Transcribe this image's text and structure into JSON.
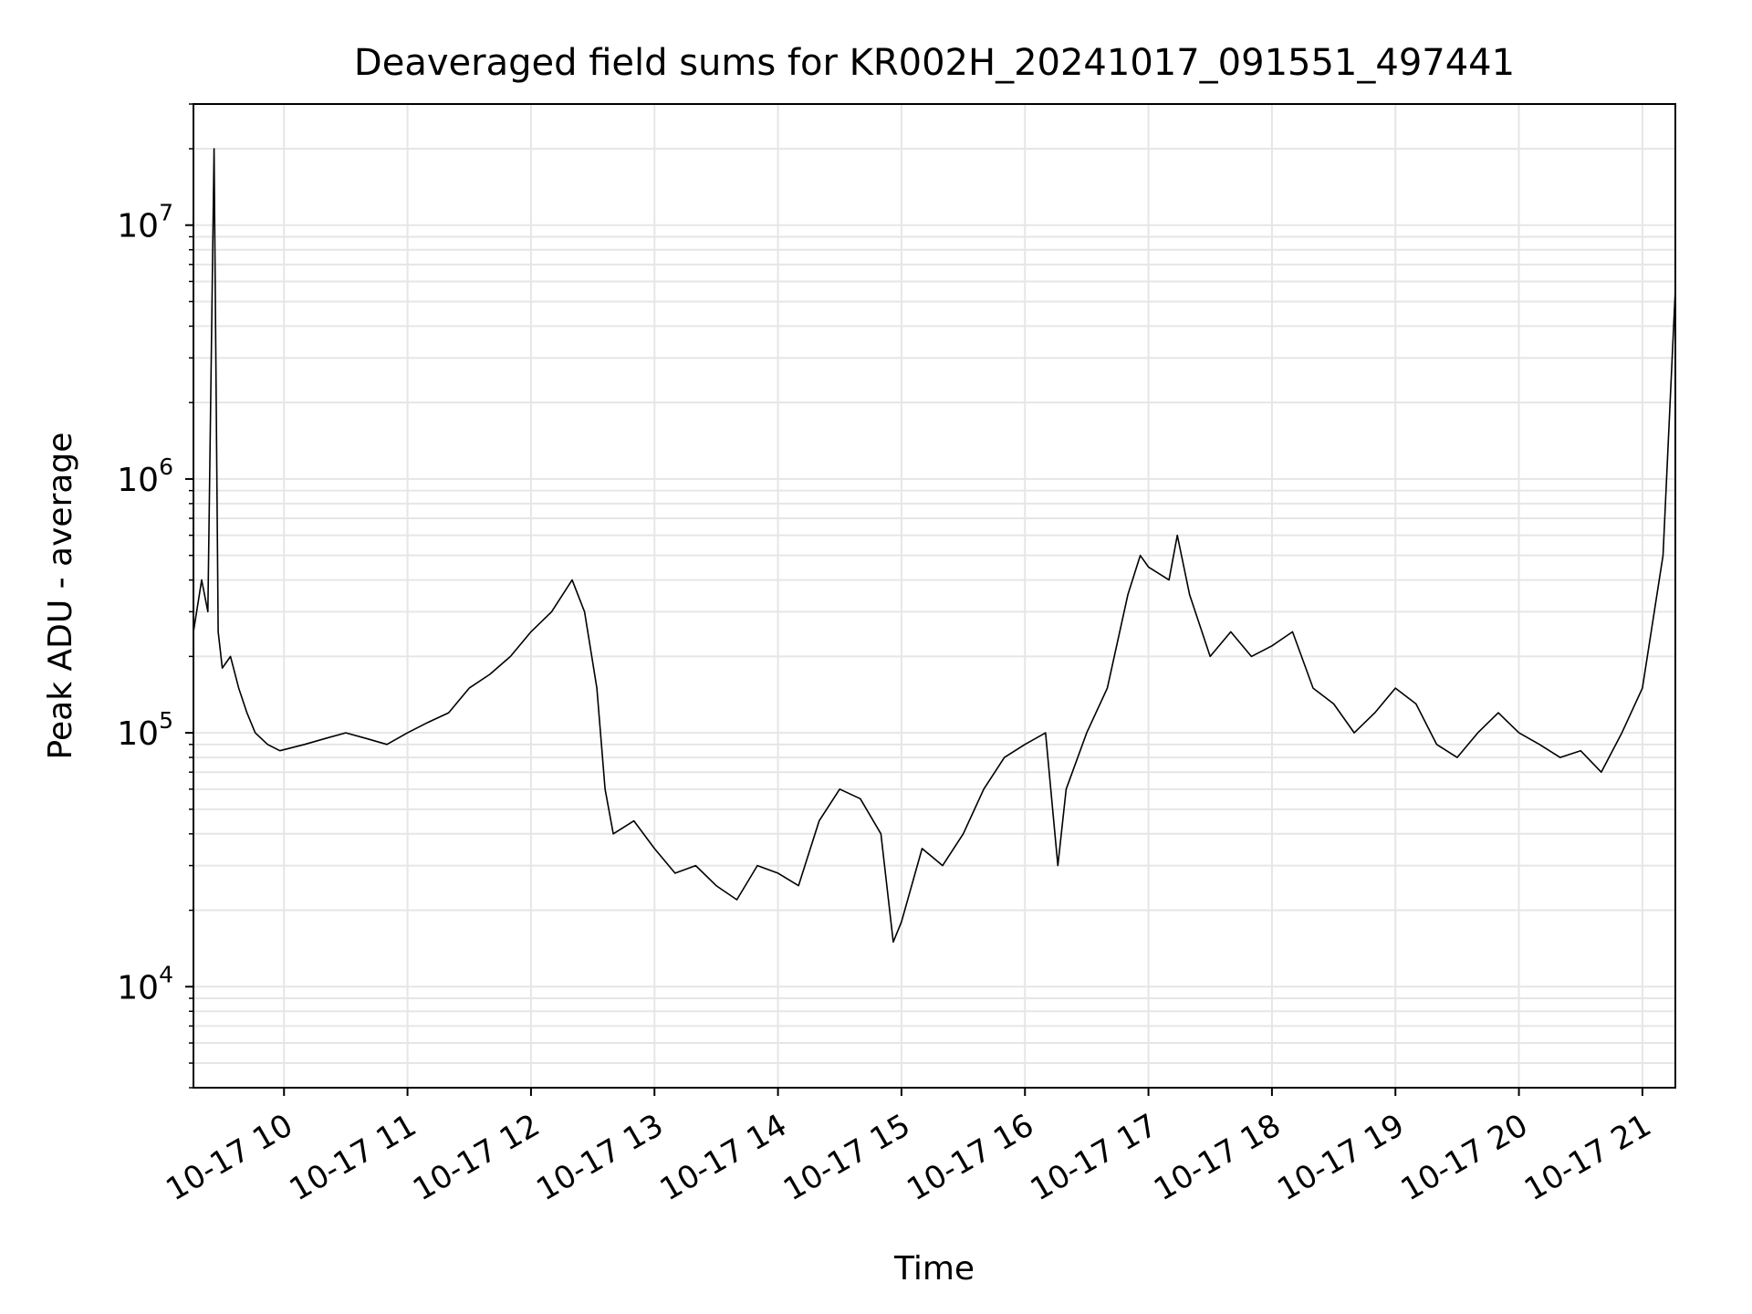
{
  "chart_data": {
    "type": "line",
    "title": "Deaveraged field sums for KR002H_20241017_091551_497441",
    "xlabel": "Time",
    "ylabel": "Peak ADU - average",
    "yscale": "log",
    "ylim": [
      4000,
      30000000
    ],
    "xlim": [
      "2024-10-17 09:16",
      "2024-10-17 21:16"
    ],
    "grid": true,
    "line_color": "#000000",
    "x_ticks": [
      {
        "time": "2024-10-17 10:00",
        "label": "10-17 10"
      },
      {
        "time": "2024-10-17 11:00",
        "label": "10-17 11"
      },
      {
        "time": "2024-10-17 12:00",
        "label": "10-17 12"
      },
      {
        "time": "2024-10-17 13:00",
        "label": "10-17 13"
      },
      {
        "time": "2024-10-17 14:00",
        "label": "10-17 14"
      },
      {
        "time": "2024-10-17 15:00",
        "label": "10-17 15"
      },
      {
        "time": "2024-10-17 16:00",
        "label": "10-17 16"
      },
      {
        "time": "2024-10-17 17:00",
        "label": "10-17 17"
      },
      {
        "time": "2024-10-17 18:00",
        "label": "10-17 18"
      },
      {
        "time": "2024-10-17 19:00",
        "label": "10-17 19"
      },
      {
        "time": "2024-10-17 20:00",
        "label": "10-17 20"
      },
      {
        "time": "2024-10-17 21:00",
        "label": "10-17 21"
      }
    ],
    "y_ticks": [
      {
        "value": 10000,
        "base": "10",
        "exp": "4"
      },
      {
        "value": 100000,
        "base": "10",
        "exp": "5"
      },
      {
        "value": 1000000,
        "base": "10",
        "exp": "6"
      },
      {
        "value": 10000000,
        "base": "10",
        "exp": "7"
      }
    ],
    "series": [
      {
        "x": [
          "2024-10-17 09:16",
          "2024-10-17 09:20",
          "2024-10-17 09:23",
          "2024-10-17 09:26",
          "2024-10-17 09:28",
          "2024-10-17 09:30",
          "2024-10-17 09:34",
          "2024-10-17 09:38",
          "2024-10-17 09:42",
          "2024-10-17 09:46",
          "2024-10-17 09:52",
          "2024-10-17 09:58",
          "2024-10-17 10:10",
          "2024-10-17 10:20",
          "2024-10-17 10:30",
          "2024-10-17 10:40",
          "2024-10-17 10:50",
          "2024-10-17 11:00",
          "2024-10-17 11:10",
          "2024-10-17 11:20",
          "2024-10-17 11:30",
          "2024-10-17 11:40",
          "2024-10-17 11:50",
          "2024-10-17 12:00",
          "2024-10-17 12:10",
          "2024-10-17 12:20",
          "2024-10-17 12:26",
          "2024-10-17 12:32",
          "2024-10-17 12:36",
          "2024-10-17 12:40",
          "2024-10-17 12:50",
          "2024-10-17 13:00",
          "2024-10-17 13:10",
          "2024-10-17 13:20",
          "2024-10-17 13:30",
          "2024-10-17 13:40",
          "2024-10-17 13:50",
          "2024-10-17 14:00",
          "2024-10-17 14:10",
          "2024-10-17 14:20",
          "2024-10-17 14:30",
          "2024-10-17 14:40",
          "2024-10-17 14:50",
          "2024-10-17 14:56",
          "2024-10-17 15:00",
          "2024-10-17 15:10",
          "2024-10-17 15:20",
          "2024-10-17 15:30",
          "2024-10-17 15:40",
          "2024-10-17 15:50",
          "2024-10-17 16:00",
          "2024-10-17 16:10",
          "2024-10-17 16:16",
          "2024-10-17 16:20",
          "2024-10-17 16:30",
          "2024-10-17 16:40",
          "2024-10-17 16:50",
          "2024-10-17 16:56",
          "2024-10-17 17:00",
          "2024-10-17 17:10",
          "2024-10-17 17:14",
          "2024-10-17 17:20",
          "2024-10-17 17:30",
          "2024-10-17 17:40",
          "2024-10-17 17:50",
          "2024-10-17 18:00",
          "2024-10-17 18:10",
          "2024-10-17 18:20",
          "2024-10-17 18:30",
          "2024-10-17 18:40",
          "2024-10-17 18:50",
          "2024-10-17 19:00",
          "2024-10-17 19:10",
          "2024-10-17 19:20",
          "2024-10-17 19:30",
          "2024-10-17 19:40",
          "2024-10-17 19:50",
          "2024-10-17 20:00",
          "2024-10-17 20:10",
          "2024-10-17 20:20",
          "2024-10-17 20:30",
          "2024-10-17 20:40",
          "2024-10-17 20:50",
          "2024-10-17 21:00",
          "2024-10-17 21:10",
          "2024-10-17 21:16"
        ],
        "y": [
          250000,
          400000,
          300000,
          20000000,
          250000,
          180000,
          200000,
          150000,
          120000,
          100000,
          90000,
          85000,
          90000,
          95000,
          100000,
          95000,
          90000,
          100000,
          110000,
          120000,
          150000,
          170000,
          200000,
          250000,
          300000,
          400000,
          300000,
          150000,
          60000,
          40000,
          45000,
          35000,
          28000,
          30000,
          25000,
          22000,
          30000,
          28000,
          25000,
          45000,
          60000,
          55000,
          40000,
          15000,
          18000,
          35000,
          30000,
          40000,
          60000,
          80000,
          90000,
          100000,
          30000,
          60000,
          100000,
          150000,
          350000,
          500000,
          450000,
          400000,
          600000,
          350000,
          200000,
          250000,
          200000,
          220000,
          250000,
          150000,
          130000,
          100000,
          120000,
          150000,
          130000,
          90000,
          80000,
          100000,
          120000,
          100000,
          90000,
          80000,
          85000,
          70000,
          100000,
          150000,
          500000,
          5600000
        ]
      }
    ]
  }
}
